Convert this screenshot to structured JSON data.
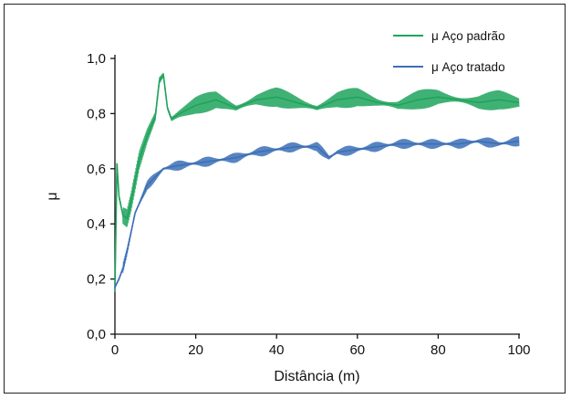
{
  "chart_data": {
    "type": "line",
    "title": "",
    "xlabel": "Distância (m)",
    "ylabel": "μ",
    "xlim": [
      0,
      100
    ],
    "ylim": [
      0.0,
      1.0
    ],
    "x_ticks": [
      0,
      20,
      40,
      60,
      80,
      100
    ],
    "x_tick_labels": [
      "0",
      "20",
      "40",
      "60",
      "80",
      "100"
    ],
    "y_ticks": [
      0.0,
      0.2,
      0.4,
      0.6,
      0.8,
      1.0
    ],
    "y_tick_labels": [
      "0,0",
      "0,2",
      "0,4",
      "0,6",
      "0,8",
      "1,0"
    ],
    "grid": false,
    "legend_position": "top-right",
    "series": [
      {
        "name": "μ Aço padrão",
        "color": "#1fa35c",
        "x": [
          0,
          0.5,
          1,
          2,
          3,
          4,
          6,
          8,
          10,
          11,
          12,
          13,
          14,
          16,
          20,
          25,
          30,
          35,
          40,
          45,
          50,
          55,
          60,
          65,
          70,
          75,
          80,
          85,
          90,
          95,
          100
        ],
        "y": [
          0.16,
          0.62,
          0.5,
          0.43,
          0.42,
          0.48,
          0.63,
          0.72,
          0.79,
          0.92,
          0.94,
          0.82,
          0.78,
          0.8,
          0.83,
          0.85,
          0.82,
          0.85,
          0.86,
          0.84,
          0.82,
          0.85,
          0.86,
          0.84,
          0.83,
          0.85,
          0.86,
          0.85,
          0.84,
          0.85,
          0.84
        ]
      },
      {
        "name": "μ Aço tratado",
        "color": "#3b6fb6",
        "x": [
          0,
          1,
          2,
          3,
          5,
          8,
          10,
          12,
          15,
          20,
          25,
          30,
          35,
          40,
          45,
          50,
          53,
          55,
          60,
          65,
          70,
          75,
          80,
          85,
          90,
          95,
          100
        ],
        "y": [
          0.17,
          0.2,
          0.24,
          0.3,
          0.44,
          0.54,
          0.57,
          0.6,
          0.61,
          0.62,
          0.63,
          0.64,
          0.66,
          0.67,
          0.68,
          0.68,
          0.64,
          0.66,
          0.67,
          0.68,
          0.69,
          0.69,
          0.69,
          0.69,
          0.7,
          0.69,
          0.7
        ]
      }
    ]
  }
}
